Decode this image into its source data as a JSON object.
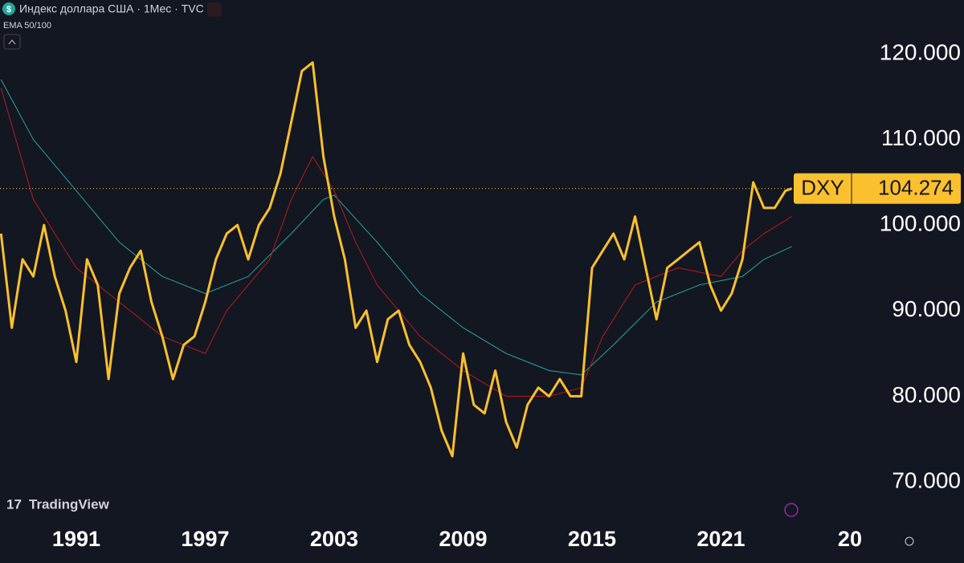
{
  "chart_data": {
    "type": "line",
    "title": "Индекс доллара США · 1Мес · TVC",
    "indicator": "EMA 50/100",
    "watermark": "TradingView",
    "symbol": "DXY",
    "xlim": [
      1987.45,
      2027.6
    ],
    "ylim": [
      65.3,
      126.3
    ],
    "xticks": [
      1991,
      1997,
      2003,
      2009,
      2015,
      2021,
      {
        "value": 2027,
        "label": "20"
      }
    ],
    "yticks": [
      {
        "value": 70,
        "label": "70.000"
      },
      {
        "value": 80,
        "label": "80.000"
      },
      {
        "value": 90,
        "label": "90.000"
      },
      {
        "value": 100,
        "label": "100.000"
      },
      {
        "value": 110,
        "label": "110.000"
      },
      {
        "value": 120,
        "label": "120.000"
      }
    ],
    "series": [
      {
        "name": "DXY",
        "color": "#fbc02d",
        "x": [
          1987.5,
          1988,
          1988.5,
          1989,
          1989.5,
          1990,
          1990.5,
          1991,
          1991.5,
          1992,
          1992.5,
          1993,
          1993.5,
          1994,
          1994.5,
          1995,
          1995.5,
          1996,
          1996.5,
          1997,
          1997.5,
          1998,
          1998.5,
          1999,
          1999.5,
          2000,
          2000.5,
          2001,
          2001.5,
          2002,
          2002.5,
          2003,
          2003.5,
          2004,
          2004.5,
          2005,
          2005.5,
          2006,
          2006.5,
          2007,
          2007.5,
          2008,
          2008.5,
          2009,
          2009.5,
          2010,
          2010.5,
          2011,
          2011.5,
          2012,
          2012.5,
          2013,
          2013.5,
          2014,
          2014.5,
          2015,
          2015.5,
          2016,
          2016.5,
          2017,
          2017.5,
          2018,
          2018.5,
          2019,
          2019.5,
          2020,
          2020.5,
          2021,
          2021.5,
          2022,
          2022.5,
          2023,
          2023.5,
          2024,
          2024.3
        ],
        "values": [
          99,
          88,
          96,
          94,
          100,
          94,
          90,
          84,
          96,
          93,
          82,
          92,
          95,
          97,
          91,
          87,
          82,
          86,
          87,
          91,
          96,
          99,
          100,
          96,
          100,
          102,
          106,
          112,
          118,
          119,
          108,
          101,
          96,
          88,
          90,
          84,
          89,
          90,
          86,
          84,
          81,
          76,
          73,
          85,
          79,
          78,
          83,
          77,
          74,
          79,
          81,
          80,
          82,
          80,
          80,
          95,
          97,
          99,
          96,
          101,
          95,
          89,
          95,
          96,
          97,
          98,
          93,
          90,
          92,
          96,
          105,
          102,
          102,
          104,
          104.274
        ]
      },
      {
        "color": "#b71c1c",
        "x": [
          1987.5,
          1989,
          1991,
          1993,
          1995,
          1997,
          1998,
          2000,
          2001,
          2002,
          2003,
          2004,
          2005,
          2007,
          2009,
          2011,
          2013,
          2014.5,
          2015.5,
          2017,
          2019,
          2021,
          2022,
          2023,
          2024.3
        ],
        "values": [
          116,
          103,
          95,
          91,
          87,
          85,
          90,
          96,
          103,
          108,
          104,
          98,
          93,
          87,
          83,
          80,
          80,
          81,
          87,
          93,
          95,
          94,
          97,
          99,
          101
        ]
      },
      {
        "color": "#26a69a",
        "x": [
          1987.5,
          1989,
          1991,
          1993,
          1995,
          1997,
          1999,
          2001,
          2002.5,
          2003,
          2005,
          2007,
          2009,
          2011,
          2013,
          2014.5,
          2016,
          2018,
          2020,
          2022,
          2023,
          2024.3
        ],
        "values": [
          117,
          110,
          104,
          98,
          94,
          92,
          94,
          99,
          103,
          103.5,
          98,
          92,
          88,
          85,
          83,
          82.5,
          86,
          91,
          93,
          94,
          96,
          97.5
        ]
      }
    ]
  }
}
